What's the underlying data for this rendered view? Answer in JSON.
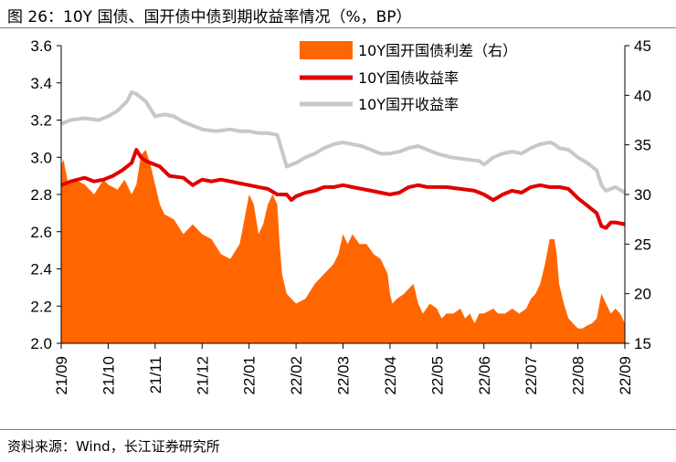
{
  "header": {
    "title": "图 26：10Y 国债、国开债中债到期收益率情况（%，BP）"
  },
  "footer": {
    "source": "资料来源：Wind，长江证券研究所"
  },
  "colors": {
    "spread": "#FF6600",
    "gov": "#E00000",
    "cdb": "#C8C8C8"
  },
  "chart_data": {
    "type": "line+area",
    "title": "10Y 国债、国开债中债到期收益率情况（%，BP）",
    "x_labels": [
      "21/09",
      "21/10",
      "21/11",
      "21/12",
      "22/01",
      "22/02",
      "22/03",
      "22/04",
      "22/05",
      "22/06",
      "22/07",
      "22/08",
      "22/09"
    ],
    "left_axis": {
      "min": 2.0,
      "max": 3.6,
      "ticks": [
        "2.0",
        "2.2",
        "2.4",
        "2.6",
        "2.8",
        "3.0",
        "3.2",
        "3.4",
        "3.6"
      ]
    },
    "right_axis": {
      "min": 15,
      "max": 45,
      "ticks": [
        "15",
        "20",
        "25",
        "30",
        "35",
        "40",
        "45"
      ]
    },
    "legend": [
      "10Y国开国债利差（右）",
      "10Y国债收益率",
      "10Y国开收益率"
    ],
    "series": [
      {
        "name": "10Y国开国债利差（右）",
        "axis": "right",
        "type": "area",
        "points": [
          [
            0,
            33
          ],
          [
            0.05,
            33.5
          ],
          [
            0.15,
            31
          ],
          [
            0.3,
            31.5
          ],
          [
            0.5,
            31
          ],
          [
            0.7,
            30
          ],
          [
            0.9,
            31.5
          ],
          [
            1.0,
            31
          ],
          [
            1.2,
            30.5
          ],
          [
            1.35,
            31.5
          ],
          [
            1.5,
            30
          ],
          [
            1.6,
            31
          ],
          [
            1.7,
            34
          ],
          [
            1.8,
            34.5
          ],
          [
            1.9,
            33
          ],
          [
            2.0,
            31
          ],
          [
            2.1,
            29
          ],
          [
            2.2,
            28
          ],
          [
            2.4,
            27.5
          ],
          [
            2.6,
            26
          ],
          [
            2.8,
            27
          ],
          [
            3.0,
            26
          ],
          [
            3.2,
            25.5
          ],
          [
            3.4,
            24
          ],
          [
            3.6,
            23.5
          ],
          [
            3.8,
            25
          ],
          [
            3.9,
            27.5
          ],
          [
            4.0,
            30
          ],
          [
            4.1,
            29
          ],
          [
            4.2,
            26
          ],
          [
            4.3,
            27
          ],
          [
            4.4,
            29
          ],
          [
            4.5,
            30
          ],
          [
            4.6,
            29
          ],
          [
            4.65,
            25
          ],
          [
            4.7,
            22
          ],
          [
            4.8,
            20
          ],
          [
            4.9,
            19.5
          ],
          [
            5.0,
            19
          ],
          [
            5.2,
            19.5
          ],
          [
            5.4,
            21
          ],
          [
            5.6,
            22
          ],
          [
            5.8,
            23
          ],
          [
            5.9,
            24
          ],
          [
            6.0,
            26
          ],
          [
            6.1,
            25
          ],
          [
            6.2,
            26
          ],
          [
            6.35,
            25
          ],
          [
            6.5,
            25
          ],
          [
            6.65,
            24
          ],
          [
            6.8,
            23.5
          ],
          [
            6.95,
            22
          ],
          [
            7.0,
            20
          ],
          [
            7.05,
            19
          ],
          [
            7.15,
            19.5
          ],
          [
            7.3,
            20
          ],
          [
            7.5,
            21
          ],
          [
            7.6,
            19
          ],
          [
            7.7,
            18
          ],
          [
            7.85,
            19
          ],
          [
            8.0,
            18.5
          ],
          [
            8.1,
            17.5
          ],
          [
            8.2,
            18
          ],
          [
            8.35,
            18
          ],
          [
            8.5,
            18.5
          ],
          [
            8.6,
            17.5
          ],
          [
            8.7,
            18
          ],
          [
            8.8,
            17
          ],
          [
            8.9,
            18
          ],
          [
            9.0,
            18
          ],
          [
            9.2,
            18.5
          ],
          [
            9.3,
            18
          ],
          [
            9.45,
            18
          ],
          [
            9.6,
            18.5
          ],
          [
            9.75,
            18
          ],
          [
            9.9,
            18.5
          ],
          [
            10.0,
            19.5
          ],
          [
            10.1,
            20
          ],
          [
            10.2,
            21
          ],
          [
            10.3,
            23
          ],
          [
            10.4,
            25.5
          ],
          [
            10.5,
            25.5
          ],
          [
            10.55,
            24
          ],
          [
            10.6,
            21
          ],
          [
            10.7,
            19
          ],
          [
            10.8,
            17.5
          ],
          [
            10.9,
            17
          ],
          [
            11.0,
            16.5
          ],
          [
            11.1,
            16.5
          ],
          [
            11.2,
            16.8
          ],
          [
            11.3,
            17
          ],
          [
            11.4,
            17.5
          ],
          [
            11.5,
            20
          ],
          [
            11.55,
            19.5
          ],
          [
            11.6,
            19
          ],
          [
            11.7,
            18
          ],
          [
            11.8,
            18.5
          ],
          [
            11.9,
            18
          ],
          [
            12.0,
            17
          ]
        ]
      },
      {
        "name": "10Y国债收益率",
        "axis": "left",
        "type": "line",
        "points": [
          [
            0,
            2.85
          ],
          [
            0.2,
            2.87
          ],
          [
            0.5,
            2.89
          ],
          [
            0.7,
            2.87
          ],
          [
            0.9,
            2.88
          ],
          [
            1.1,
            2.9
          ],
          [
            1.3,
            2.93
          ],
          [
            1.5,
            2.97
          ],
          [
            1.6,
            3.04
          ],
          [
            1.7,
            3.0
          ],
          [
            1.8,
            2.98
          ],
          [
            1.9,
            2.97
          ],
          [
            2.1,
            2.95
          ],
          [
            2.3,
            2.9
          ],
          [
            2.6,
            2.89
          ],
          [
            2.8,
            2.85
          ],
          [
            3.0,
            2.88
          ],
          [
            3.2,
            2.87
          ],
          [
            3.4,
            2.88
          ],
          [
            3.6,
            2.87
          ],
          [
            3.8,
            2.86
          ],
          [
            4.0,
            2.85
          ],
          [
            4.2,
            2.84
          ],
          [
            4.4,
            2.83
          ],
          [
            4.6,
            2.8
          ],
          [
            4.8,
            2.8
          ],
          [
            4.9,
            2.77
          ],
          [
            5.0,
            2.79
          ],
          [
            5.2,
            2.81
          ],
          [
            5.4,
            2.82
          ],
          [
            5.6,
            2.84
          ],
          [
            5.8,
            2.84
          ],
          [
            6.0,
            2.85
          ],
          [
            6.2,
            2.84
          ],
          [
            6.4,
            2.83
          ],
          [
            6.6,
            2.82
          ],
          [
            6.8,
            2.81
          ],
          [
            7.0,
            2.8
          ],
          [
            7.2,
            2.81
          ],
          [
            7.4,
            2.84
          ],
          [
            7.6,
            2.85
          ],
          [
            7.8,
            2.84
          ],
          [
            8.0,
            2.84
          ],
          [
            8.2,
            2.84
          ],
          [
            8.5,
            2.83
          ],
          [
            8.8,
            2.82
          ],
          [
            9.0,
            2.8
          ],
          [
            9.2,
            2.77
          ],
          [
            9.4,
            2.8
          ],
          [
            9.6,
            2.82
          ],
          [
            9.8,
            2.81
          ],
          [
            10.0,
            2.84
          ],
          [
            10.2,
            2.85
          ],
          [
            10.4,
            2.84
          ],
          [
            10.6,
            2.84
          ],
          [
            10.8,
            2.83
          ],
          [
            11.0,
            2.78
          ],
          [
            11.2,
            2.74
          ],
          [
            11.4,
            2.7
          ],
          [
            11.5,
            2.63
          ],
          [
            11.6,
            2.62
          ],
          [
            11.7,
            2.65
          ],
          [
            11.8,
            2.65
          ],
          [
            12.0,
            2.64
          ]
        ]
      },
      {
        "name": "10Y国开收益率",
        "axis": "left",
        "type": "line",
        "points": [
          [
            0,
            3.18
          ],
          [
            0.2,
            3.2
          ],
          [
            0.5,
            3.21
          ],
          [
            0.8,
            3.2
          ],
          [
            1.0,
            3.22
          ],
          [
            1.2,
            3.25
          ],
          [
            1.4,
            3.3
          ],
          [
            1.5,
            3.35
          ],
          [
            1.6,
            3.34
          ],
          [
            1.8,
            3.3
          ],
          [
            2.0,
            3.22
          ],
          [
            2.2,
            3.23
          ],
          [
            2.4,
            3.22
          ],
          [
            2.6,
            3.19
          ],
          [
            2.8,
            3.17
          ],
          [
            3.0,
            3.15
          ],
          [
            3.3,
            3.14
          ],
          [
            3.6,
            3.15
          ],
          [
            3.8,
            3.14
          ],
          [
            4.0,
            3.14
          ],
          [
            4.2,
            3.13
          ],
          [
            4.4,
            3.13
          ],
          [
            4.6,
            3.12
          ],
          [
            4.8,
            2.95
          ],
          [
            5.0,
            2.97
          ],
          [
            5.2,
            3.0
          ],
          [
            5.4,
            3.02
          ],
          [
            5.6,
            3.05
          ],
          [
            5.8,
            3.07
          ],
          [
            6.0,
            3.08
          ],
          [
            6.2,
            3.07
          ],
          [
            6.4,
            3.06
          ],
          [
            6.6,
            3.04
          ],
          [
            6.8,
            3.02
          ],
          [
            7.0,
            3.02
          ],
          [
            7.2,
            3.03
          ],
          [
            7.4,
            3.05
          ],
          [
            7.6,
            3.06
          ],
          [
            7.8,
            3.04
          ],
          [
            8.0,
            3.02
          ],
          [
            8.3,
            3.0
          ],
          [
            8.6,
            2.99
          ],
          [
            8.9,
            2.98
          ],
          [
            9.0,
            2.96
          ],
          [
            9.2,
            3.0
          ],
          [
            9.4,
            3.02
          ],
          [
            9.6,
            3.03
          ],
          [
            9.8,
            3.02
          ],
          [
            10.0,
            3.05
          ],
          [
            10.2,
            3.07
          ],
          [
            10.4,
            3.08
          ],
          [
            10.5,
            3.07
          ],
          [
            10.6,
            3.05
          ],
          [
            10.8,
            3.04
          ],
          [
            11.0,
            3.0
          ],
          [
            11.2,
            2.97
          ],
          [
            11.4,
            2.93
          ],
          [
            11.5,
            2.85
          ],
          [
            11.6,
            2.82
          ],
          [
            11.8,
            2.84
          ],
          [
            12.0,
            2.81
          ]
        ]
      }
    ]
  }
}
